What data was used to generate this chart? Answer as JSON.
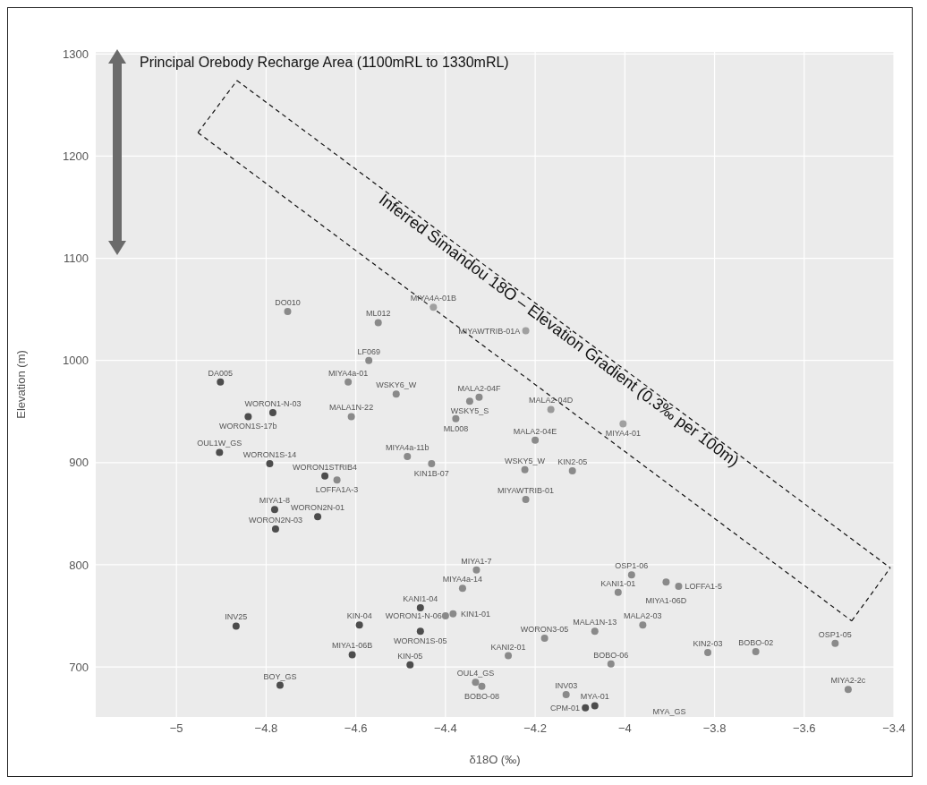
{
  "chart_data": {
    "type": "scatter",
    "xlabel": "δ18O (‰)",
    "ylabel": "Elevation (m)",
    "xlim": [
      -5.18,
      -3.4
    ],
    "ylim": [
      651,
      1302
    ],
    "xticks": [
      {
        "value": -5,
        "label": "−5"
      },
      {
        "value": -4.8,
        "label": "−4.8"
      },
      {
        "value": -4.6,
        "label": "−4.6"
      },
      {
        "value": -4.4,
        "label": "−4.4"
      },
      {
        "value": -4.2,
        "label": "−4.2"
      },
      {
        "value": -4,
        "label": "−4"
      },
      {
        "value": -3.8,
        "label": "−3.8"
      },
      {
        "value": -3.6,
        "label": "−3.6"
      },
      {
        "value": -3.4,
        "label": "−3.4"
      }
    ],
    "yticks": [
      700,
      800,
      900,
      1000,
      1100,
      1200,
      1300
    ],
    "grid": true,
    "marker": "circle",
    "series": [
      {
        "x": [
          -4.752,
          -4.55,
          -4.427,
          -4.221,
          -4.571,
          -4.902,
          -4.617,
          -4.51,
          -4.325,
          -4.346,
          -4.377,
          -4.785,
          -4.84,
          -4.61,
          -4.165,
          -4.004,
          -4.2,
          -4.904,
          -4.485,
          -4.792,
          -4.431,
          -4.223,
          -4.117,
          -4.669,
          -4.642,
          -4.221,
          -4.685,
          -4.781,
          -4.779,
          -4.331,
          -4.362,
          -4.456,
          -4.383,
          -4.4,
          -4.456,
          -4.592,
          -4.867,
          -4.608,
          -4.479,
          -4.769,
          -4.333,
          -4.319,
          -4.26,
          -4.179,
          -4.067,
          -3.96,
          -4.031,
          -4.015,
          -3.985,
          -3.908,
          -3.88,
          -3.815,
          -3.708,
          -3.531,
          -3.502,
          -4.131,
          -4.088,
          -4.067
        ],
        "values": [
          1048,
          1037,
          1052,
          1029,
          1000,
          979,
          979,
          967,
          964,
          960,
          943,
          949,
          945,
          945,
          952,
          938,
          922,
          910,
          906,
          899,
          899,
          893,
          892,
          887,
          883,
          864,
          847,
          854,
          835,
          795,
          777,
          758,
          752,
          750,
          735,
          741,
          740,
          712,
          702,
          682,
          685,
          681,
          711,
          728,
          735,
          741,
          703,
          773,
          790,
          783,
          779,
          714,
          715,
          723,
          678,
          673,
          660,
          662
        ],
        "value_labels": [
          "DO010",
          "ML012",
          "MIYA4A-01B",
          "MIYAWTRIB-01A",
          "LF069",
          "DA005",
          "MIYA4a-01",
          "WSKY6_W",
          "MALA2-04F",
          "WSKY5_S",
          "ML008",
          "WORON1-N-03",
          "WORON1S-17b",
          "MALA1N-22",
          "MALA2-04D",
          "MIYA4-01",
          "MALA2-04E",
          "OUL1W_GS",
          "MIYA4a-11b",
          "WORON1S-14",
          "KIN1B-07",
          "WSKY5_W",
          "KIN2-05",
          "WORON1STRIB4",
          "LOFFA1A-3",
          "MIYAWTRIB-01",
          "WORON2N-01",
          "MIYA1-8",
          "WORON2N-03",
          "MIYA1-7",
          "MIYA4a-14",
          "KANI1-04",
          "KIN1-01",
          "WORON1-N-06",
          "WORON1S-05",
          "KIN-04",
          "INV25",
          "MIYA1-06B",
          "KIN-05",
          "BOY_GS",
          "OUL4_GS",
          "BOBO-08",
          "KANI2-01",
          "WORON3-05",
          "MALA1N-13",
          "MALA2-03",
          "BOBO-06",
          "KANI1-01",
          "OSP1-06",
          "MIYA1-06D",
          "LOFFA1-5",
          "KIN2-03",
          "BOBO-02",
          "OSP1-05",
          "MIYA2-2c",
          "INV03",
          "CPM-01",
          "MYA-01"
        ],
        "colors": [
          "#8a8a8a",
          "#8a8a8a",
          "#a0a0a0",
          "#a0a0a0",
          "#8a8a8a",
          "#4d4d4d",
          "#8a8a8a",
          "#8a8a8a",
          "#8a8a8a",
          "#8a8a8a",
          "#8a8a8a",
          "#4d4d4d",
          "#4d4d4d",
          "#8a8a8a",
          "#9a9a9a",
          "#a0a0a0",
          "#8a8a8a",
          "#4d4d4d",
          "#8a8a8a",
          "#4d4d4d",
          "#8a8a8a",
          "#8a8a8a",
          "#8a8a8a",
          "#4d4d4d",
          "#8a8a8a",
          "#8a8a8a",
          "#4d4d4d",
          "#4d4d4d",
          "#4d4d4d",
          "#8a8a8a",
          "#8a8a8a",
          "#4d4d4d",
          "#8a8a8a",
          "#8a8a8a",
          "#4d4d4d",
          "#4d4d4d",
          "#4d4d4d",
          "#4d4d4d",
          "#4d4d4d",
          "#4d4d4d",
          "#8a8a8a",
          "#8a8a8a",
          "#8a8a8a",
          "#8a8a8a",
          "#8a8a8a",
          "#8a8a8a",
          "#8a8a8a",
          "#8a8a8a",
          "#8a8a8a",
          "#8a8a8a",
          "#8a8a8a",
          "#8a8a8a",
          "#8a8a8a",
          "#8a8a8a",
          "#8a8a8a",
          "#8a8a8a",
          "#4d4d4d",
          "#4d4d4d"
        ]
      },
      {
        "type": "line",
        "x": [
          -4.865,
          -3.408
        ],
        "values": [
          1274,
          797
        ],
        "color": "#111111",
        "line_style": "dashed",
        "marker": "none"
      },
      {
        "type": "line",
        "x": [
          -4.952,
          -3.494
        ],
        "values": [
          1223,
          745
        ],
        "color": "#111111",
        "line_style": "dashed",
        "marker": "none"
      },
      {
        "type": "line",
        "x": [
          -4.952,
          -4.865
        ],
        "values": [
          1223,
          1274
        ],
        "color": "#111111",
        "line_style": "dashed",
        "marker": "none"
      },
      {
        "type": "line",
        "x": [
          -3.494,
          -3.408
        ],
        "values": [
          745,
          797
        ],
        "color": "#111111",
        "line_style": "dashed",
        "marker": "none"
      }
    ],
    "annotations": [
      "Principal Orebody Recharge Area (1100mRL to 1330mRL)",
      "Inferred Simandou 18O – Elevation Gradient (0.3‰ per 100m)",
      "MYA_GS"
    ]
  }
}
